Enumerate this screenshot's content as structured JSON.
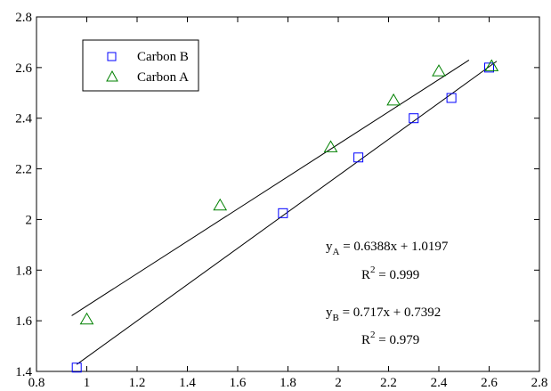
{
  "chart_data": {
    "type": "scatter",
    "title": "",
    "xlabel": "",
    "ylabel": "",
    "xlim": [
      0.8,
      2.8
    ],
    "ylim": [
      1.4,
      2.8
    ],
    "x_ticks": [
      "0.8",
      "1",
      "1.2",
      "1.4",
      "1.6",
      "1.8",
      "2",
      "2.2",
      "2.4",
      "2.6",
      "2.8"
    ],
    "y_ticks": [
      "1.4",
      "1.6",
      "1.8",
      "2",
      "2.2",
      "2.4",
      "2.6",
      "2.8"
    ],
    "grid": false,
    "legend_position": "top-left",
    "series": [
      {
        "name": "Carbon B",
        "marker": "square",
        "color": "#0000ff",
        "points": [
          {
            "x": 0.96,
            "y": 1.415
          },
          {
            "x": 1.78,
            "y": 2.025
          },
          {
            "x": 2.08,
            "y": 2.245
          },
          {
            "x": 2.3,
            "y": 2.4
          },
          {
            "x": 2.45,
            "y": 2.48
          },
          {
            "x": 2.6,
            "y": 2.6
          }
        ],
        "fit": {
          "slope": 0.717,
          "intercept": 0.7392,
          "x_range": [
            0.96,
            2.63
          ]
        }
      },
      {
        "name": "Carbon A",
        "marker": "triangle",
        "color": "#008000",
        "points": [
          {
            "x": 1.0,
            "y": 1.605
          },
          {
            "x": 1.53,
            "y": 2.055
          },
          {
            "x": 1.97,
            "y": 2.285
          },
          {
            "x": 2.22,
            "y": 2.47
          },
          {
            "x": 2.4,
            "y": 2.585
          },
          {
            "x": 2.61,
            "y": 2.605
          }
        ],
        "fit": {
          "slope": 0.6388,
          "intercept": 1.0197,
          "x_range": [
            0.94,
            2.52
          ]
        }
      }
    ],
    "annotations": [
      {
        "main": "y",
        "sub": "A",
        "rest": " = 0.6388x + 1.0197"
      },
      {
        "main": "R",
        "sup": "2",
        "rest": " = 0.999"
      },
      {
        "main": "y",
        "sub": "B",
        "rest": " = 0.717x + 0.7392"
      },
      {
        "main": "R",
        "sup": "2",
        "rest": " = 0.979"
      }
    ]
  }
}
